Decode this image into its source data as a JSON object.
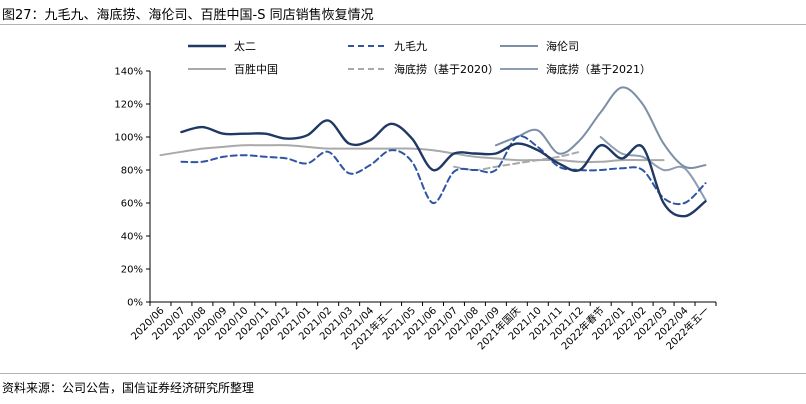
{
  "title": "图27：九毛九、海底捞、海伦司、百胜中国-S 同店销售恢复情况",
  "source": "资料来源：公司公告，国信证券经济研究所整理",
  "chart_data": {
    "type": "line",
    "title": "图27：九毛九、海底捞、海伦司、百胜中国-S 同店销售恢复情况",
    "xlabel": "",
    "ylabel": "",
    "ylim": [
      0,
      140
    ],
    "yticks": [
      "0%",
      "20%",
      "40%",
      "60%",
      "80%",
      "100%",
      "120%",
      "140%"
    ],
    "categories": [
      "2020/06",
      "2020/07",
      "2020/08",
      "2020/09",
      "2020/10",
      "2020/11",
      "2020/12",
      "2021/01",
      "2021/02",
      "2021/03",
      "2021/04",
      "2021年五一",
      "2021/05",
      "2021/06",
      "2021/07",
      "2021/08",
      "2021/09",
      "2021年国庆",
      "2021/10",
      "2021/11",
      "2021/12",
      "2022年春节",
      "2022/01",
      "2022/02",
      "2022/03",
      "2022/04",
      "2022年五一"
    ],
    "grid": false,
    "legend_position": "top",
    "series": [
      {
        "name": "太二",
        "color": "#1f3864",
        "dash": "solid",
        "values": [
          null,
          103,
          106,
          102,
          102,
          102,
          99,
          101,
          110,
          96,
          98,
          108,
          99,
          80,
          90,
          90,
          90,
          96,
          92,
          84,
          80,
          95,
          87,
          94,
          60,
          52,
          61
        ]
      },
      {
        "name": "九毛九",
        "color": "#2f55a4",
        "dash": "dashed",
        "values": [
          null,
          85,
          85,
          88,
          89,
          88,
          87,
          84,
          91,
          78,
          83,
          92,
          85,
          60,
          79,
          80,
          80,
          100,
          94,
          82,
          80,
          80,
          81,
          80,
          63,
          60,
          72
        ]
      },
      {
        "name": "海伦司",
        "color": "#7d8fa6",
        "dash": "solid",
        "values": [
          null,
          null,
          null,
          null,
          null,
          null,
          null,
          null,
          null,
          null,
          null,
          null,
          null,
          null,
          null,
          null,
          95,
          100,
          104,
          90,
          98,
          115,
          130,
          120,
          96,
          82,
          83
        ]
      },
      {
        "name": "百胜中国",
        "color": "#a9a9a9",
        "dash": "solid",
        "values": [
          89,
          91,
          93,
          94,
          95,
          95,
          95,
          94,
          93,
          93,
          93,
          93,
          93,
          92,
          90,
          88,
          87,
          86,
          86,
          86,
          85,
          85,
          86,
          86,
          86,
          null,
          null
        ]
      },
      {
        "name": "海底捞（基于2020）",
        "color": "#a9a9a9",
        "dash": "dashed",
        "values": [
          null,
          null,
          null,
          null,
          null,
          null,
          null,
          null,
          null,
          null,
          null,
          null,
          null,
          null,
          82,
          80,
          82,
          84,
          86,
          88,
          91,
          null,
          null,
          null,
          null,
          null,
          null
        ]
      },
      {
        "name": "海底捞（基于2021）",
        "color": "#8c9db5",
        "dash": "solid",
        "values": [
          null,
          null,
          null,
          null,
          null,
          null,
          null,
          null,
          null,
          null,
          null,
          null,
          null,
          null,
          null,
          null,
          null,
          null,
          null,
          null,
          null,
          100,
          90,
          88,
          80,
          81,
          62
        ]
      }
    ]
  }
}
